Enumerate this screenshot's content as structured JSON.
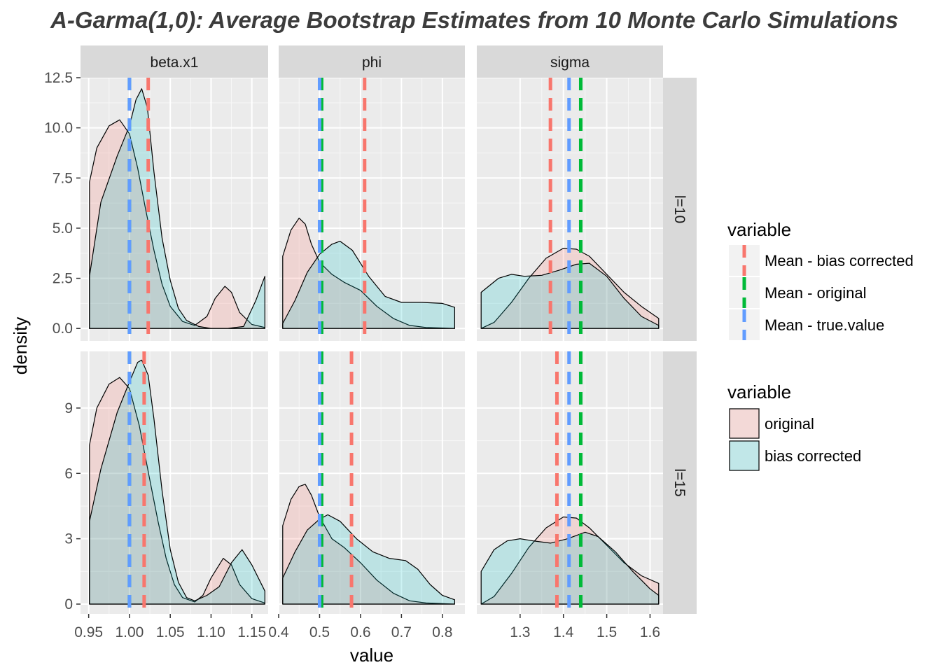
{
  "title": "A-Garma(1,0):   Average Bootstrap Estimates from  10 Monte Carlo Simulations",
  "colors": {
    "original": "#F8766D",
    "bias_corrected": "#00BFC4",
    "line_bias_corrected": "#F8766D",
    "line_original": "#00BA38",
    "line_true": "#619CFF"
  },
  "chart_data": {
    "type": "area",
    "subtype": "faceted density",
    "xlabel": "value",
    "ylabel": "density",
    "facet_cols": [
      "beta.x1",
      "phi",
      "sigma"
    ],
    "facet_rows": [
      "l=10",
      "l=15"
    ],
    "legend_fill": {
      "title": "variable",
      "entries": [
        {
          "key": "original",
          "label": "original",
          "color": "#F8766D"
        },
        {
          "key": "bias_corrected",
          "label": "bias corrected",
          "color": "#00BFC4"
        }
      ]
    },
    "legend_lines": {
      "title": "variable",
      "entries": [
        {
          "key": "bias",
          "label": "Mean - bias corrected",
          "color": "#F8766D"
        },
        {
          "key": "orig",
          "label": "Mean - original",
          "color": "#00BA38"
        },
        {
          "key": "true",
          "label": "Mean - true.value",
          "color": "#619CFF"
        }
      ]
    },
    "x_axes": [
      {
        "range": [
          0.94,
          1.17
        ],
        "ticks": [
          0.95,
          1.0,
          1.05,
          1.1,
          1.15
        ],
        "tick_labels": [
          "0.95",
          "1.00",
          "1.05",
          "1.10",
          "1.15"
        ]
      },
      {
        "range": [
          0.4,
          0.855
        ],
        "ticks": [
          0.4,
          0.5,
          0.6,
          0.7,
          0.8
        ],
        "tick_labels": [
          "0.4",
          "0.5",
          "0.6",
          "0.7",
          "0.8"
        ]
      },
      {
        "range": [
          1.2,
          1.63
        ],
        "ticks": [
          1.3,
          1.4,
          1.5,
          1.6
        ],
        "tick_labels": [
          "1.3",
          "1.4",
          "1.5",
          "1.6"
        ]
      }
    ],
    "y_axes": [
      {
        "range": [
          -0.62,
          12.5
        ],
        "ticks": [
          0,
          2.5,
          5,
          7.5,
          10,
          12.5
        ],
        "tick_labels": [
          "0.0",
          "2.5",
          "5.0",
          "7.5",
          "10.0",
          "12.5"
        ]
      },
      {
        "range": [
          -0.45,
          11.6
        ],
        "ticks": [
          0,
          3,
          6,
          9
        ],
        "tick_labels": [
          "0",
          "3",
          "6",
          "9"
        ]
      }
    ],
    "panels": [
      {
        "row": 0,
        "col": 0,
        "lines": {
          "bias": 1.023,
          "orig": 1.0,
          "true": 1.0
        },
        "original": [
          [
            0.951,
            7.3
          ],
          [
            0.96,
            9.0
          ],
          [
            0.975,
            10.1
          ],
          [
            0.988,
            10.4
          ],
          [
            1.0,
            9.7
          ],
          [
            1.01,
            8.0
          ],
          [
            1.02,
            5.9
          ],
          [
            1.03,
            3.9
          ],
          [
            1.04,
            2.2
          ],
          [
            1.05,
            1.1
          ],
          [
            1.065,
            0.35
          ],
          [
            1.08,
            0.15
          ],
          [
            1.095,
            0.6
          ],
          [
            1.105,
            1.5
          ],
          [
            1.117,
            2.1
          ],
          [
            1.125,
            1.8
          ],
          [
            1.135,
            0.8
          ],
          [
            1.15,
            0.2
          ],
          [
            1.166,
            0.05
          ]
        ],
        "bias_corrected": [
          [
            0.951,
            2.6
          ],
          [
            0.965,
            6.3
          ],
          [
            0.985,
            8.6
          ],
          [
            1.0,
            10.1
          ],
          [
            1.008,
            11.4
          ],
          [
            1.015,
            11.95
          ],
          [
            1.022,
            11.0
          ],
          [
            1.03,
            7.8
          ],
          [
            1.04,
            4.5
          ],
          [
            1.05,
            2.4
          ],
          [
            1.06,
            1.0
          ],
          [
            1.07,
            0.4
          ],
          [
            1.085,
            0.1
          ],
          [
            1.1,
            0.0
          ],
          [
            1.12,
            0.0
          ],
          [
            1.14,
            0.1
          ],
          [
            1.155,
            1.4
          ],
          [
            1.166,
            2.6
          ]
        ]
      },
      {
        "row": 0,
        "col": 1,
        "lines": {
          "bias": 0.61,
          "orig": 0.505,
          "true": 0.5
        },
        "original": [
          [
            0.41,
            3.6
          ],
          [
            0.43,
            4.9
          ],
          [
            0.45,
            5.5
          ],
          [
            0.465,
            5.2
          ],
          [
            0.48,
            4.2
          ],
          [
            0.5,
            3.3
          ],
          [
            0.53,
            2.7
          ],
          [
            0.56,
            2.3
          ],
          [
            0.6,
            1.9
          ],
          [
            0.64,
            1.1
          ],
          [
            0.68,
            0.5
          ],
          [
            0.72,
            0.15
          ],
          [
            0.76,
            0.05
          ],
          [
            0.83,
            0.0
          ]
        ],
        "bias_corrected": [
          [
            0.41,
            0.25
          ],
          [
            0.44,
            1.4
          ],
          [
            0.47,
            2.8
          ],
          [
            0.5,
            3.7
          ],
          [
            0.53,
            4.2
          ],
          [
            0.55,
            4.35
          ],
          [
            0.58,
            3.9
          ],
          [
            0.62,
            2.6
          ],
          [
            0.66,
            1.6
          ],
          [
            0.7,
            1.3
          ],
          [
            0.75,
            1.3
          ],
          [
            0.8,
            1.25
          ],
          [
            0.83,
            1.05
          ]
        ]
      },
      {
        "row": 0,
        "col": 2,
        "lines": {
          "bias": 1.37,
          "orig": 1.44,
          "true": 1.413
        },
        "original": [
          [
            1.21,
            0.0
          ],
          [
            1.24,
            0.3
          ],
          [
            1.28,
            1.3
          ],
          [
            1.32,
            2.5
          ],
          [
            1.36,
            3.5
          ],
          [
            1.4,
            4.0
          ],
          [
            1.43,
            3.95
          ],
          [
            1.46,
            3.6
          ],
          [
            1.5,
            2.7
          ],
          [
            1.54,
            1.8
          ],
          [
            1.58,
            1.1
          ],
          [
            1.62,
            0.5
          ]
        ],
        "bias_corrected": [
          [
            1.21,
            1.8
          ],
          [
            1.25,
            2.5
          ],
          [
            1.28,
            2.7
          ],
          [
            1.31,
            2.6
          ],
          [
            1.35,
            2.65
          ],
          [
            1.39,
            2.9
          ],
          [
            1.43,
            3.2
          ],
          [
            1.46,
            3.25
          ],
          [
            1.5,
            2.6
          ],
          [
            1.54,
            1.5
          ],
          [
            1.58,
            0.6
          ],
          [
            1.62,
            0.15
          ]
        ]
      },
      {
        "row": 1,
        "col": 0,
        "lines": {
          "bias": 1.018,
          "orig": 1.0,
          "true": 1.0
        },
        "original": [
          [
            0.951,
            7.3
          ],
          [
            0.96,
            9.0
          ],
          [
            0.975,
            10.1
          ],
          [
            0.988,
            10.4
          ],
          [
            1.0,
            9.9
          ],
          [
            1.012,
            8.2
          ],
          [
            1.025,
            5.7
          ],
          [
            1.035,
            3.8
          ],
          [
            1.045,
            2.1
          ],
          [
            1.055,
            0.9
          ],
          [
            1.065,
            0.3
          ],
          [
            1.08,
            0.1
          ],
          [
            1.09,
            0.4
          ],
          [
            1.1,
            1.2
          ],
          [
            1.115,
            2.1
          ],
          [
            1.125,
            1.8
          ],
          [
            1.135,
            0.9
          ],
          [
            1.15,
            0.25
          ],
          [
            1.166,
            0.05
          ]
        ],
        "bias_corrected": [
          [
            0.951,
            3.8
          ],
          [
            0.965,
            6.2
          ],
          [
            0.985,
            8.8
          ],
          [
            1.0,
            10.2
          ],
          [
            1.01,
            11.1
          ],
          [
            1.015,
            11.2
          ],
          [
            1.023,
            10.5
          ],
          [
            1.03,
            8.5
          ],
          [
            1.04,
            5.2
          ],
          [
            1.05,
            2.5
          ],
          [
            1.06,
            1.0
          ],
          [
            1.07,
            0.3
          ],
          [
            1.08,
            0.15
          ],
          [
            1.095,
            0.4
          ],
          [
            1.11,
            0.8
          ],
          [
            1.125,
            1.9
          ],
          [
            1.138,
            2.5
          ],
          [
            1.15,
            1.8
          ],
          [
            1.166,
            0.6
          ]
        ]
      },
      {
        "row": 1,
        "col": 1,
        "lines": {
          "bias": 0.578,
          "orig": 0.505,
          "true": 0.5
        },
        "original": [
          [
            0.41,
            3.6
          ],
          [
            0.43,
            4.8
          ],
          [
            0.45,
            5.4
          ],
          [
            0.465,
            5.5
          ],
          [
            0.48,
            5.0
          ],
          [
            0.5,
            4.0
          ],
          [
            0.53,
            3.0
          ],
          [
            0.56,
            2.6
          ],
          [
            0.6,
            1.9
          ],
          [
            0.64,
            1.1
          ],
          [
            0.68,
            0.5
          ],
          [
            0.72,
            0.15
          ],
          [
            0.76,
            0.05
          ],
          [
            0.83,
            0.0
          ]
        ],
        "bias_corrected": [
          [
            0.41,
            1.2
          ],
          [
            0.44,
            2.4
          ],
          [
            0.47,
            3.4
          ],
          [
            0.5,
            3.9
          ],
          [
            0.52,
            4.1
          ],
          [
            0.55,
            3.8
          ],
          [
            0.59,
            3.0
          ],
          [
            0.63,
            2.4
          ],
          [
            0.67,
            2.1
          ],
          [
            0.71,
            2.0
          ],
          [
            0.74,
            1.6
          ],
          [
            0.77,
            0.9
          ],
          [
            0.8,
            0.4
          ],
          [
            0.83,
            0.2
          ]
        ]
      },
      {
        "row": 1,
        "col": 2,
        "lines": {
          "bias": 1.385,
          "orig": 1.44,
          "true": 1.413
        },
        "original": [
          [
            1.21,
            0.0
          ],
          [
            1.24,
            0.35
          ],
          [
            1.28,
            1.4
          ],
          [
            1.32,
            2.6
          ],
          [
            1.36,
            3.5
          ],
          [
            1.4,
            4.0
          ],
          [
            1.43,
            3.95
          ],
          [
            1.46,
            3.5
          ],
          [
            1.5,
            2.7
          ],
          [
            1.54,
            1.9
          ],
          [
            1.58,
            1.3
          ],
          [
            1.62,
            0.95
          ]
        ],
        "bias_corrected": [
          [
            1.21,
            1.5
          ],
          [
            1.24,
            2.5
          ],
          [
            1.27,
            2.9
          ],
          [
            1.3,
            3.0
          ],
          [
            1.33,
            2.9
          ],
          [
            1.37,
            2.8
          ],
          [
            1.41,
            3.0
          ],
          [
            1.45,
            3.3
          ],
          [
            1.48,
            3.1
          ],
          [
            1.52,
            2.4
          ],
          [
            1.56,
            1.5
          ],
          [
            1.6,
            0.7
          ],
          [
            1.62,
            0.4
          ]
        ]
      }
    ]
  }
}
